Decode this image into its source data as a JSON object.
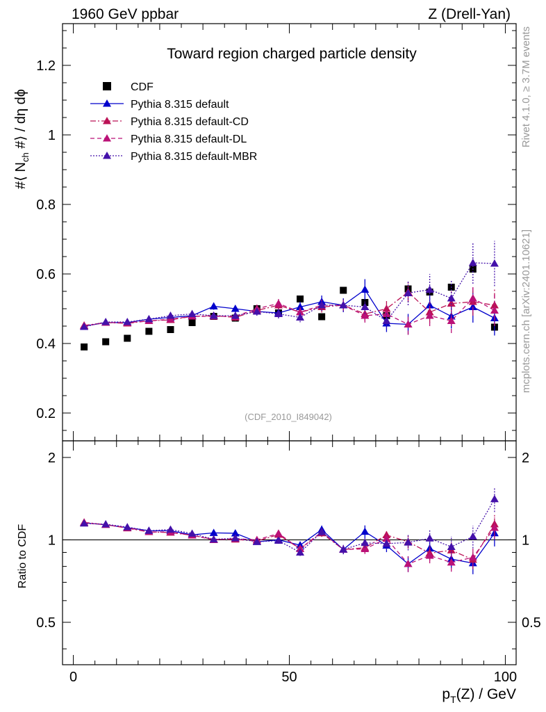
{
  "header": {
    "left": "1960 GeV ppbar",
    "right": "Z (Drell-Yan)"
  },
  "side": {
    "rivet": "Rivet 4.1.0, ≥ 3.7M events",
    "mcplots": "mcplots.cern.ch [arXiv:2401.10621]"
  },
  "chart_data": {
    "type": "scatter",
    "title": "Toward region charged particle density",
    "analysis_id": "(CDF_2010_I849042)",
    "xlabel": "p_T(Z) / GeV",
    "ylabel": "#⟨ N_ch #⟩ / dη dϕ",
    "ratio_ylabel": "Ratio to CDF",
    "xlim": [
      -2.5,
      102.5
    ],
    "ylim": [
      0.12,
      1.32
    ],
    "ratio_ylim": [
      0.35,
      2.3
    ],
    "x_ticks": [
      0,
      50,
      100
    ],
    "y_ticks": [
      0.2,
      0.4,
      0.6,
      0.8,
      1,
      1.2
    ],
    "y_tick_labels": [
      "0.2",
      "0.4",
      "0.6",
      "0.8",
      "1",
      "1.2"
    ],
    "ratio_ticks": [
      0.5,
      1,
      2
    ],
    "ratio_tick_labels": [
      "0.5",
      "1",
      "2"
    ],
    "x": [
      2.5,
      7.5,
      12.5,
      17.5,
      22.5,
      27.5,
      32.5,
      37.5,
      42.5,
      47.5,
      52.5,
      57.5,
      62.5,
      67.5,
      72.5,
      77.5,
      82.5,
      87.5,
      92.5,
      97.5
    ],
    "series": [
      {
        "name": "CDF",
        "color": "#000000",
        "marker": "square",
        "style": "none",
        "values": [
          0.39,
          0.405,
          0.415,
          0.435,
          0.44,
          0.46,
          0.478,
          0.473,
          0.5,
          0.488,
          0.528,
          0.477,
          0.553,
          0.518,
          0.48,
          0.557,
          0.548,
          0.562,
          0.614,
          0.447
        ]
      },
      {
        "name": "Pythia 8.315 default",
        "color": "#0000cc",
        "marker": "triangle",
        "style": "solid",
        "values": [
          0.45,
          0.46,
          0.46,
          0.47,
          0.475,
          0.48,
          0.507,
          0.5,
          0.492,
          0.488,
          0.505,
          0.52,
          0.51,
          0.555,
          0.458,
          0.455,
          0.51,
          0.478,
          0.505,
          0.473
        ],
        "errors": [
          0.005,
          0.005,
          0.005,
          0.006,
          0.006,
          0.007,
          0.01,
          0.01,
          0.012,
          0.013,
          0.015,
          0.018,
          0.02,
          0.03,
          0.025,
          0.03,
          0.03,
          0.035,
          0.045,
          0.05
        ]
      },
      {
        "name": "Pythia 8.315 default-CD",
        "color": "#bb1155",
        "marker": "triangle",
        "style": "dashdot",
        "values": [
          0.452,
          0.46,
          0.458,
          0.465,
          0.468,
          0.478,
          0.48,
          0.475,
          0.495,
          0.51,
          0.49,
          0.505,
          0.51,
          0.485,
          0.5,
          0.548,
          0.49,
          0.515,
          0.52,
          0.51
        ],
        "errors": [
          0.005,
          0.005,
          0.005,
          0.006,
          0.006,
          0.007,
          0.009,
          0.01,
          0.012,
          0.013,
          0.014,
          0.016,
          0.018,
          0.02,
          0.022,
          0.03,
          0.03,
          0.035,
          0.04,
          0.045
        ]
      },
      {
        "name": "Pythia 8.315 default-DL",
        "color": "#bb1177",
        "marker": "triangle",
        "style": "dashed",
        "values": [
          0.45,
          0.46,
          0.46,
          0.465,
          0.47,
          0.478,
          0.478,
          0.478,
          0.5,
          0.515,
          0.49,
          0.51,
          0.51,
          0.48,
          0.485,
          0.455,
          0.48,
          0.465,
          0.53,
          0.495
        ],
        "errors": [
          0.005,
          0.005,
          0.005,
          0.006,
          0.006,
          0.007,
          0.009,
          0.01,
          0.012,
          0.013,
          0.014,
          0.016,
          0.018,
          0.02,
          0.022,
          0.03,
          0.03,
          0.035,
          0.04,
          0.045
        ]
      },
      {
        "name": "Pythia 8.315 default-MBR",
        "color": "#4411aa",
        "marker": "triangle",
        "style": "dotted",
        "values": [
          0.448,
          0.462,
          0.462,
          0.47,
          0.48,
          0.485,
          0.48,
          0.48,
          0.492,
          0.485,
          0.475,
          0.51,
          0.51,
          0.505,
          0.465,
          0.545,
          0.555,
          0.53,
          0.632,
          0.63
        ],
        "errors": [
          0.005,
          0.005,
          0.005,
          0.006,
          0.006,
          0.007,
          0.009,
          0.01,
          0.012,
          0.013,
          0.014,
          0.016,
          0.018,
          0.02,
          0.022,
          0.035,
          0.045,
          0.05,
          0.06,
          0.065
        ]
      }
    ]
  }
}
